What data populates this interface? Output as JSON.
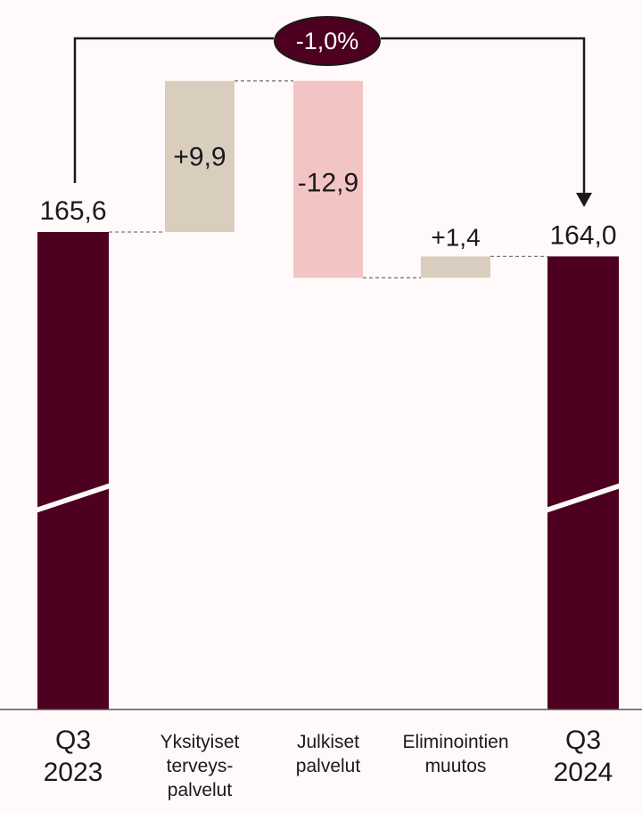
{
  "chart_data": {
    "type": "waterfall",
    "categories": [
      [
        "Q3",
        "2023"
      ],
      [
        "Yksityiset",
        "terveys-",
        "palvelut"
      ],
      [
        "Julkiset",
        "palvelut"
      ],
      [
        "Eliminointien",
        "muutos"
      ],
      [
        "Q3",
        "2024"
      ]
    ],
    "start": {
      "value": 165.6,
      "label": "165,6"
    },
    "deltas": [
      {
        "value": 9.9,
        "label": "+9,9"
      },
      {
        "value": -12.9,
        "label": "-12,9"
      },
      {
        "value": 1.4,
        "label": "+1,4"
      }
    ],
    "end": {
      "value": 164.0,
      "label": "164,0"
    },
    "change_label": "-1,0%",
    "axis_break": true,
    "colors": {
      "total": "#4d001f",
      "increase": "#d9cebe",
      "decrease": "#f2c4c4",
      "connector": "#7a7a7a",
      "arrow": "#1a1a1a",
      "background": "#fffaf9"
    }
  }
}
